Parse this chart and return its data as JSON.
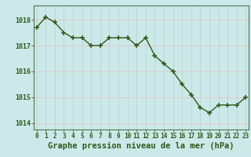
{
  "hours": [
    0,
    1,
    2,
    3,
    4,
    5,
    6,
    7,
    8,
    9,
    10,
    11,
    12,
    13,
    14,
    15,
    16,
    17,
    18,
    19,
    20,
    21,
    22,
    23
  ],
  "pressure": [
    1017.7,
    1018.1,
    1017.9,
    1017.5,
    1017.3,
    1017.3,
    1017.0,
    1017.0,
    1017.3,
    1017.3,
    1017.3,
    1017.0,
    1017.3,
    1016.6,
    1016.3,
    1016.0,
    1015.5,
    1015.1,
    1014.6,
    1014.4,
    1014.7,
    1014.7,
    1014.7,
    1015.0
  ],
  "line_color": "#2d5a1b",
  "marker_color": "#2d5a1b",
  "bg_color": "#cce8e8",
  "grid_color_v": "#b8d8d8",
  "grid_color_h": "#e8c8c8",
  "xlabel": "Graphe pression niveau de la mer (hPa)",
  "xlabel_color": "#2d5a1b",
  "tick_color": "#2d5a1b",
  "ylim": [
    1013.75,
    1018.55
  ],
  "yticks": [
    1014,
    1015,
    1016,
    1017,
    1018
  ],
  "xticks": [
    0,
    1,
    2,
    3,
    4,
    5,
    6,
    7,
    8,
    9,
    10,
    11,
    12,
    13,
    14,
    15,
    16,
    17,
    18,
    19,
    20,
    21,
    22,
    23
  ],
  "spine_color": "#4a7a4a",
  "font_size_x": 5.5,
  "font_size_y": 6.0,
  "font_size_label": 7.5
}
